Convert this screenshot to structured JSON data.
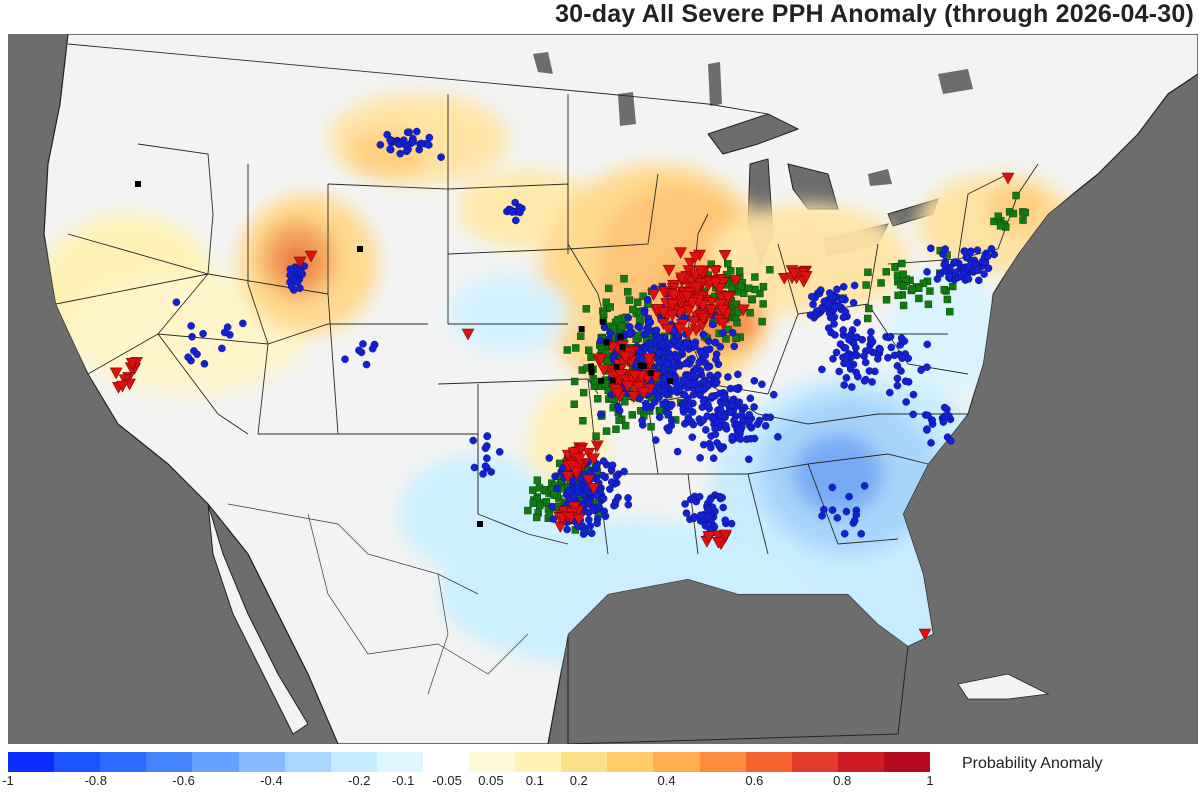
{
  "title": "30-day All Severe PPH Anomaly (through 2026-04-30)",
  "legend": {
    "label": "Probability Anomaly",
    "colors": [
      "#0b2dff",
      "#1a55ff",
      "#2e6bff",
      "#4285ff",
      "#63a2ff",
      "#86bbff",
      "#a9d5ff",
      "#c6ebff",
      "#ddf6ff",
      "#ffffff",
      "#fffbd8",
      "#fff2b3",
      "#ffe08a",
      "#ffcb6b",
      "#ffaf50",
      "#ff8c3c",
      "#f4632e",
      "#e33b2b",
      "#cc1b25",
      "#b30a1f"
    ],
    "ticks": [
      {
        "label": "-1",
        "value": -1
      },
      {
        "label": "-0.8",
        "value": -0.8
      },
      {
        "label": "-0.6",
        "value": -0.6
      },
      {
        "label": "-0.4",
        "value": -0.4
      },
      {
        "label": "-0.2",
        "value": -0.2
      },
      {
        "label": "-0.1",
        "value": -0.1
      },
      {
        "label": "-0.05",
        "value": -0.05
      },
      {
        "label": "0.05",
        "value": 0.05
      },
      {
        "label": "0.1",
        "value": 0.1
      },
      {
        "label": "0.2",
        "value": 0.2
      },
      {
        "label": "0.4",
        "value": 0.4
      },
      {
        "label": "0.6",
        "value": 0.6
      },
      {
        "label": "0.8",
        "value": 0.8
      },
      {
        "label": "1",
        "value": 1
      }
    ]
  },
  "report_types": [
    "wind",
    "hail",
    "tornado",
    "other"
  ],
  "colors": {
    "ocean": "#6d6d6d",
    "land": "#f3f3f3",
    "wind_dot": "#1420d4",
    "hail_square": "#127a12",
    "tornado_triangle": "#e01010"
  }
}
